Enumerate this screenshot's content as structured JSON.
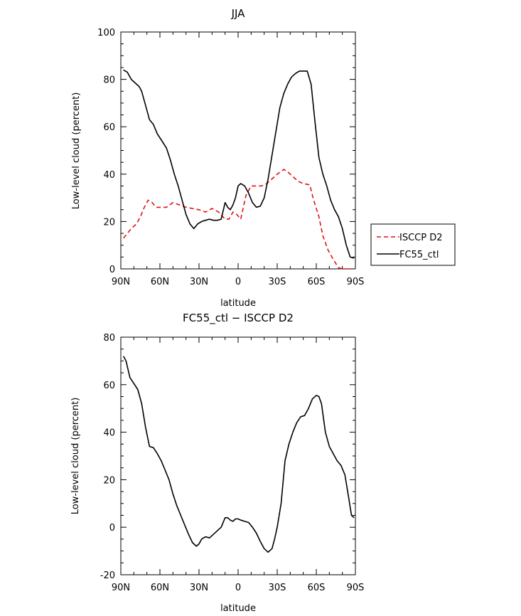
{
  "chart_data": [
    {
      "type": "line",
      "title": "JJA",
      "xlabel": "latitude",
      "ylabel": "Low-level cloud (percent)",
      "xlim": [
        -90,
        90
      ],
      "ylim": [
        0,
        100
      ],
      "xticks": [
        {
          "value": -90,
          "label": "90N"
        },
        {
          "value": -60,
          "label": "60N"
        },
        {
          "value": -30,
          "label": "30N"
        },
        {
          "value": 0,
          "label": "0"
        },
        {
          "value": 30,
          "label": "30S"
        },
        {
          "value": 60,
          "label": "60S"
        },
        {
          "value": 90,
          "label": "90S"
        }
      ],
      "yticks": [
        0,
        20,
        40,
        60,
        80,
        100
      ],
      "legend_position": "right",
      "series": [
        {
          "name": "ISCCP D2",
          "color": "#e01010",
          "dash": "dashed",
          "x": [
            -88,
            -85,
            -82,
            -78,
            -75,
            -72,
            -69,
            -66,
            -63,
            -60,
            -55,
            -50,
            -45,
            -40,
            -35,
            -30,
            -25,
            -20,
            -15,
            -10,
            -7,
            -4,
            -1,
            2,
            6,
            10,
            14,
            18,
            22,
            26,
            30,
            35,
            38,
            42,
            46,
            50,
            55,
            58,
            62,
            65,
            69,
            73,
            77,
            80,
            83,
            85,
            88
          ],
          "y": [
            13,
            15,
            17,
            19,
            22,
            26,
            29,
            28,
            26,
            26,
            26,
            28,
            27,
            26,
            25.5,
            25,
            24,
            25.5,
            24,
            21,
            21,
            24,
            23,
            21,
            31,
            35,
            35,
            35,
            36,
            38,
            40,
            42,
            41,
            39,
            37,
            36,
            35.5,
            29,
            22,
            14,
            8,
            4,
            0.5,
            0,
            0,
            0,
            0
          ]
        },
        {
          "name": "FC55_ctl",
          "color": "#000000",
          "dash": "solid",
          "x": [
            -88,
            -85,
            -82,
            -79,
            -76,
            -74,
            -71,
            -68,
            -65,
            -62,
            -59,
            -55,
            -52,
            -49,
            -46,
            -43,
            -40,
            -37,
            -34,
            -31,
            -28,
            -25,
            -22,
            -19,
            -16,
            -13,
            -10,
            -8,
            -6,
            -4,
            -2,
            0,
            2,
            5,
            8,
            11,
            14,
            17,
            20,
            23,
            26,
            29,
            32,
            35,
            38,
            41,
            44,
            47,
            50,
            53,
            56,
            59,
            62,
            65,
            68,
            71,
            74,
            77,
            80,
            83,
            86,
            89
          ],
          "y": [
            84,
            83,
            80,
            78.5,
            77,
            75,
            69,
            63,
            61,
            57,
            54.5,
            51,
            46,
            40,
            35,
            29,
            23,
            19,
            17,
            19,
            20,
            20.5,
            21,
            20.5,
            20.5,
            21,
            28,
            26,
            25,
            27,
            30,
            35,
            36,
            35,
            32,
            28,
            26,
            26.5,
            30,
            38,
            48,
            58,
            68,
            74,
            78,
            81,
            82.5,
            83.5,
            83.5,
            83.5,
            78,
            62,
            47,
            40,
            35,
            29,
            25,
            22,
            17,
            10,
            5,
            4.5
          ]
        }
      ]
    },
    {
      "type": "line",
      "title": "FC55_ctl − ISCCP D2",
      "xlabel": "latitude",
      "ylabel": "Low-level cloud (percent)",
      "xlim": [
        -90,
        90
      ],
      "ylim": [
        -20,
        80
      ],
      "xticks": [
        {
          "value": -90,
          "label": "90N"
        },
        {
          "value": -60,
          "label": "60N"
        },
        {
          "value": -30,
          "label": "30N"
        },
        {
          "value": 0,
          "label": "0"
        },
        {
          "value": 30,
          "label": "30S"
        },
        {
          "value": 60,
          "label": "60S"
        },
        {
          "value": 90,
          "label": "90S"
        }
      ],
      "yticks": [
        -20,
        0,
        20,
        40,
        60,
        80
      ],
      "series": [
        {
          "name": "",
          "color": "#000000",
          "dash": "solid",
          "x": [
            -88,
            -86,
            -83,
            -80,
            -77,
            -74,
            -71,
            -68,
            -65,
            -62,
            -59,
            -56,
            -53,
            -50,
            -47,
            -44,
            -41,
            -38,
            -35,
            -32,
            -30,
            -28,
            -25,
            -22,
            -19,
            -16,
            -13,
            -10,
            -8,
            -6,
            -4,
            -2,
            0,
            2,
            5,
            8,
            11,
            14,
            17,
            20,
            23,
            26,
            28,
            30,
            33,
            36,
            39,
            42,
            45,
            48,
            51,
            54,
            57,
            60,
            62,
            64,
            67,
            70,
            73,
            76,
            79,
            82,
            85,
            87,
            89
          ],
          "y": [
            72,
            70,
            63,
            60.5,
            58,
            52,
            42,
            34,
            33.5,
            31,
            28,
            24,
            20,
            14,
            9,
            5,
            1,
            -3,
            -6.5,
            -8,
            -7,
            -5,
            -4,
            -4.5,
            -3,
            -1.5,
            0,
            4,
            4,
            3,
            2.5,
            3.5,
            3.5,
            3,
            2.5,
            2,
            0,
            -2.5,
            -6,
            -9,
            -10.5,
            -9,
            -5,
            0,
            10,
            28,
            35,
            40,
            44,
            46.5,
            47,
            50,
            54,
            55.5,
            55,
            52,
            40,
            34,
            31,
            28,
            26,
            22,
            12,
            5,
            4
          ]
        }
      ]
    }
  ]
}
